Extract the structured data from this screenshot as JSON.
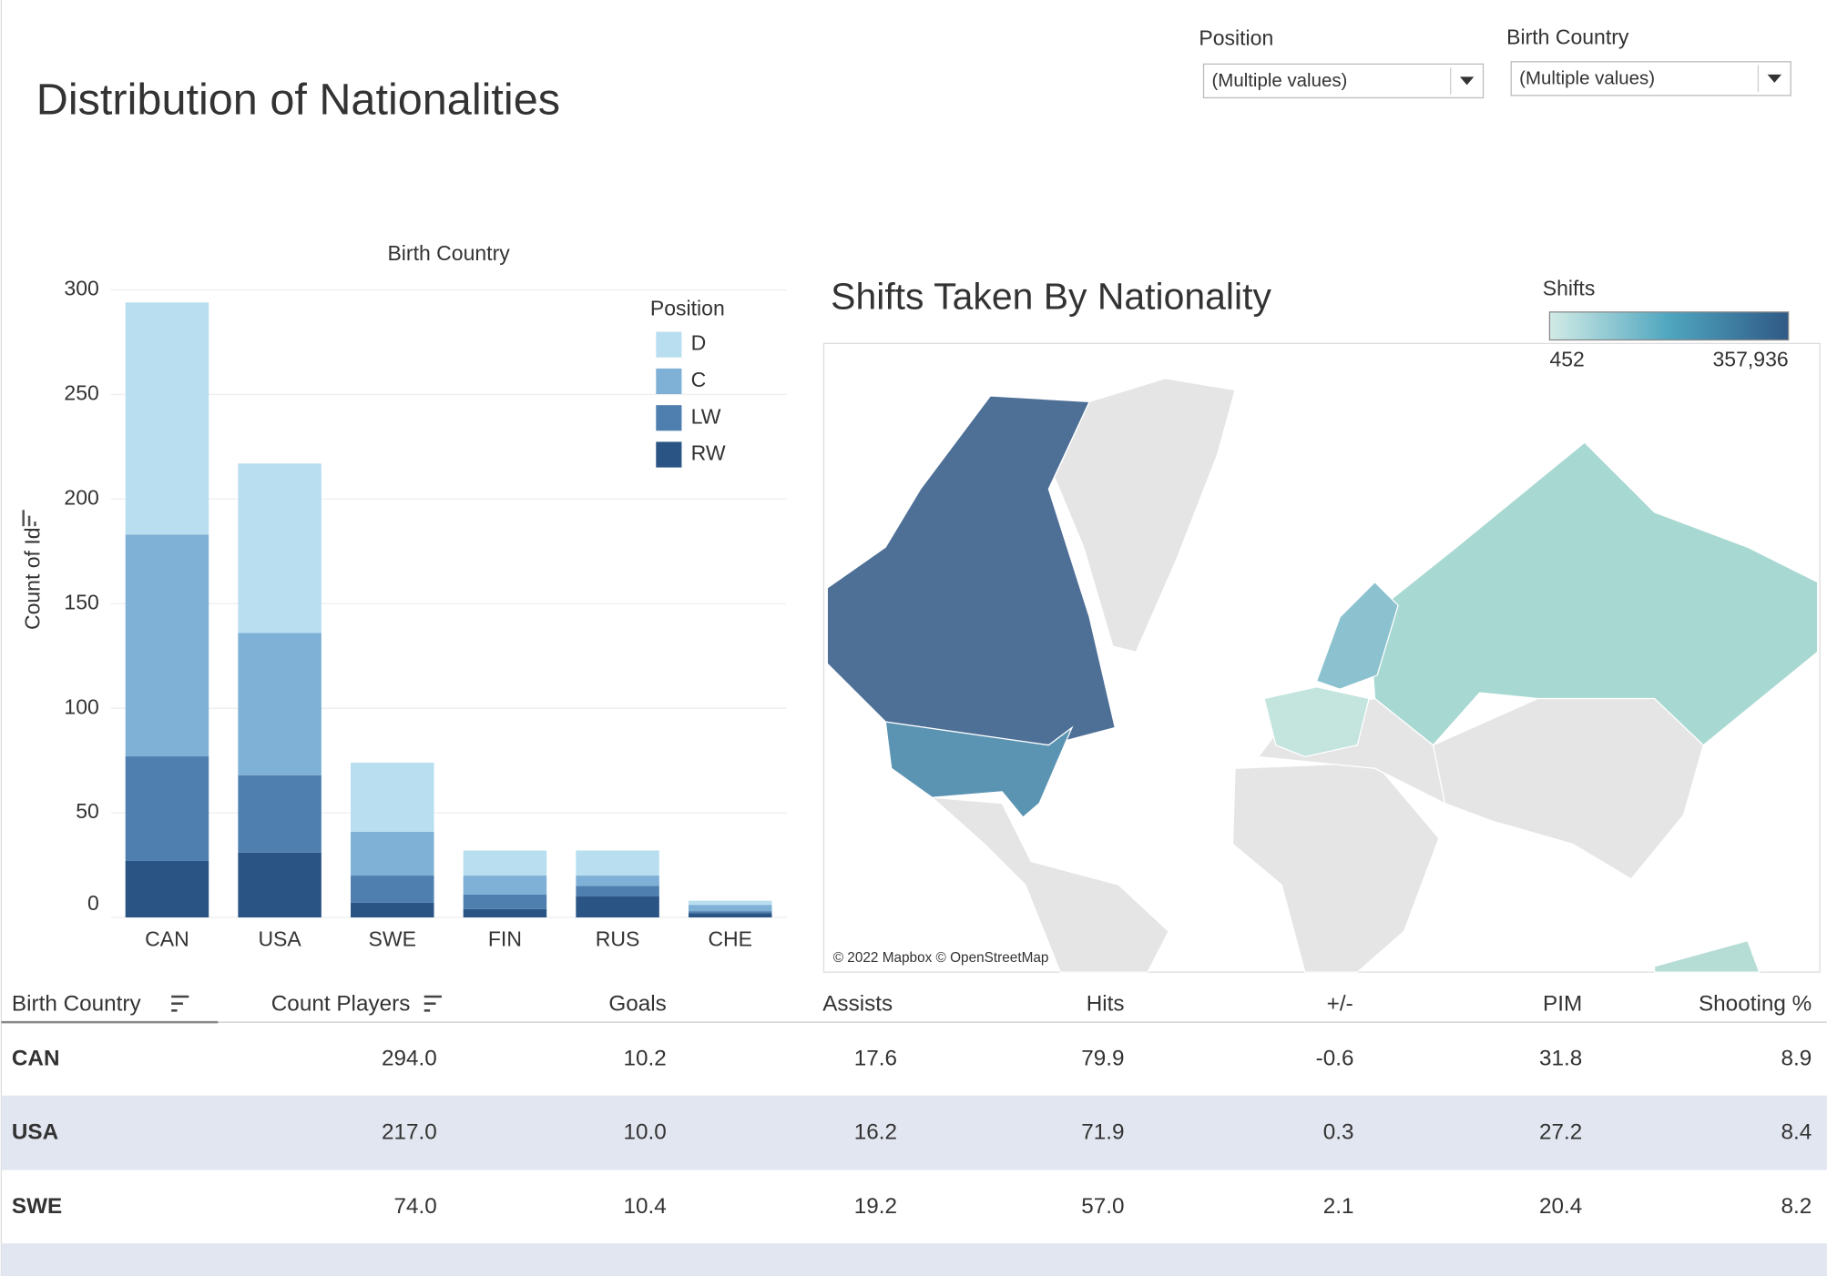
{
  "header": {
    "title": "Distribution of Nationalities"
  },
  "filters": [
    {
      "label": "Position",
      "value": "(Multiple values)"
    },
    {
      "label": "Birth Country",
      "value": "(Multiple values)"
    }
  ],
  "chart_data": {
    "type": "bar",
    "stacked": true,
    "x_label": "Birth Country",
    "y_label": "Count of Id",
    "categories": [
      "CAN",
      "USA",
      "SWE",
      "FIN",
      "RUS",
      "CHE"
    ],
    "series": [
      {
        "name": "D",
        "color": "#b9def0",
        "values": [
          111,
          81,
          33,
          12,
          12,
          2
        ]
      },
      {
        "name": "C",
        "color": "#7fb0d5",
        "values": [
          106,
          68,
          21,
          9,
          5,
          3
        ]
      },
      {
        "name": "LW",
        "color": "#4f7faf",
        "values": [
          50,
          37,
          13,
          7,
          5,
          1
        ]
      },
      {
        "name": "RW",
        "color": "#2a5484",
        "values": [
          27,
          31,
          7,
          4,
          10,
          2
        ]
      }
    ],
    "ylim": [
      0,
      300
    ],
    "yticks": [
      0,
      50,
      100,
      150,
      200,
      250,
      300
    ],
    "grid": true,
    "legend": {
      "title": "Position",
      "position": "top-right"
    }
  },
  "map": {
    "title": "Shifts Taken By Nationality",
    "attribution": "© 2022 Mapbox © OpenStreetMap",
    "legend": {
      "title": "Shifts",
      "min": 452,
      "max": {
        "value": 357936,
        "label": "357,936"
      },
      "colors": [
        "#d2ebe6",
        "#4fa6bf",
        "#2f5986"
      ]
    }
  },
  "table": {
    "columns": [
      "Birth Country",
      "Count Players",
      "Goals",
      "Assists",
      "Hits",
      "+/-",
      "PIM",
      "Shooting %"
    ],
    "rows": [
      [
        "CAN",
        "294.0",
        "10.2",
        "17.6",
        "79.9",
        "-0.6",
        "31.8",
        "8.9"
      ],
      [
        "USA",
        "217.0",
        "10.0",
        "16.2",
        "71.9",
        "0.3",
        "27.2",
        "8.4"
      ],
      [
        "SWE",
        "74.0",
        "10.4",
        "19.2",
        "57.0",
        "2.1",
        "20.4",
        "8.2"
      ]
    ]
  }
}
